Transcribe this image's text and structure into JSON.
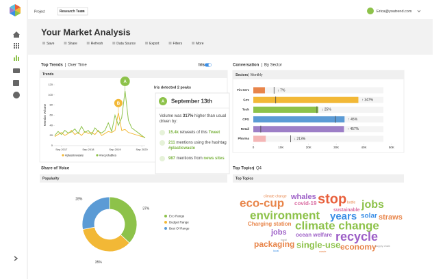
{
  "app": {
    "project_label": "Project",
    "project": "Research Team",
    "user": "Erica@youtrend.com"
  },
  "header": {
    "title": "Your Market Analysis",
    "toolbar": [
      "Save",
      "Share",
      "Refresh",
      "Data Source",
      "Export",
      "Filters",
      "More"
    ]
  },
  "sections": {
    "trends": "Top Trends",
    "trends_sub": "Over Time",
    "iris": "Iris",
    "conversation": "Conversation",
    "conversation_sub": "By Sector",
    "share": "Share of Voice",
    "topics": "Top Topics",
    "topics_sub": "Q4"
  },
  "chart_data": [
    {
      "type": "line",
      "title": "Trends",
      "ylabel": "Mention Volume",
      "ylim": [
        0,
        120
      ],
      "yticks": [
        0,
        20,
        40,
        60,
        80,
        100,
        120
      ],
      "xticks": [
        {
          "value": 2,
          "label": "Sep 2017"
        },
        {
          "value": 10,
          "label": "Sep 2018"
        },
        {
          "value": 18,
          "label": "Sep 2019"
        },
        {
          "value": 26,
          "label": "Sep 2020"
        }
      ],
      "series": [
        {
          "name": "#plasticwaste",
          "color": "#f2b836",
          "values": [
            18,
            22,
            26,
            20,
            24,
            30,
            22,
            26,
            20,
            28,
            24,
            26,
            22,
            30,
            20,
            24,
            28,
            26,
            30,
            65,
            30,
            32,
            26,
            24,
            22,
            20,
            18,
            16
          ]
        },
        {
          "name": "#recyclables",
          "color": "#8dc24a",
          "values": [
            20,
            28,
            22,
            30,
            25,
            27,
            33,
            24,
            38,
            26,
            30,
            22,
            35,
            28,
            25,
            30,
            45,
            28,
            60,
            40,
            55,
            108,
            50,
            35,
            30,
            25,
            20,
            15
          ]
        }
      ],
      "annotations": [
        "A",
        "B"
      ]
    },
    {
      "type": "hbar",
      "title": "Sectors",
      "subtitle": "Monthly",
      "categories": [
        "Fin Serv",
        "Gov",
        "Tech",
        "CPG",
        "Retail",
        "Pharma"
      ],
      "values": [
        4200,
        38000,
        23500,
        33000,
        32800,
        4500
      ],
      "benchmarks": [
        7500,
        8100,
        23000,
        29700,
        2700,
        13500
      ],
      "colors": [
        "#e8854a",
        "#f2b836",
        "#8dc24a",
        "#5b9bd5",
        "#9d7fc7",
        "#f4b6b6"
      ],
      "change_labels": [
        "↓ 7%",
        "↑ 347%",
        "↓ 25%",
        "↑ 45%",
        "↑ 457%",
        "↓ 213%"
      ],
      "xlim": [
        0,
        52000
      ],
      "xticks": [
        0,
        {
          "value": 10000,
          "label": "10K"
        },
        {
          "value": 20000,
          "label": "20K"
        },
        {
          "value": 30000,
          "label": "30K"
        },
        {
          "value": 40000,
          "label": "40K"
        },
        {
          "value": 50000,
          "label": "50K"
        }
      ]
    },
    {
      "type": "donut",
      "title": "Popularity",
      "categories": [
        "Eco Range",
        "Budget Range",
        "Best Of Range"
      ],
      "values": [
        37,
        35,
        28
      ],
      "value_labels": [
        "37%",
        "35%",
        "28%"
      ],
      "colors": [
        "#8dc24a",
        "#f2b836",
        "#5b9bd5"
      ]
    }
  ],
  "insight": {
    "heading": "Iris detected 2 peaks",
    "date": "September 13th",
    "summary": [
      "Volume was ",
      "317%",
      " higher than usual driven by:"
    ],
    "items": [
      [
        "15.4k",
        " retweets of this ",
        "Tweet"
      ],
      [
        "211",
        " mentions using the hashtag ",
        "#plasticwaste"
      ],
      [
        "987",
        " mentions from ",
        "news sites"
      ]
    ]
  },
  "word_cloud": {
    "title": "Top Topics",
    "words": [
      {
        "text": "climate change",
        "color": "#e8854a"
      },
      {
        "text": "whales",
        "color": "#9d5fc7"
      },
      {
        "text": "stop",
        "color": "#e8603c"
      },
      {
        "text": "bottle",
        "color": "#e8854a"
      },
      {
        "text": "eco-cup",
        "color": "#e8854a"
      },
      {
        "text": "covid-19",
        "color": "#d96aa0"
      },
      {
        "text": "jobs",
        "color": "#8dc24a"
      },
      {
        "text": "sustainable",
        "color": "#d96aa0"
      },
      {
        "text": "environment",
        "color": "#8dc24a"
      },
      {
        "text": "years",
        "color": "#3a8ee6"
      },
      {
        "text": "solar",
        "color": "#3a8ee6"
      },
      {
        "text": "straws",
        "color": "#e8854a"
      },
      {
        "text": "Charging station",
        "color": "#e8854a"
      },
      {
        "text": "climate change",
        "color": "#8dc24a"
      },
      {
        "text": "jobs",
        "color": "#9d5fc7"
      },
      {
        "text": "ocean welfare",
        "color": "#9d5fc7"
      },
      {
        "text": "recycle",
        "color": "#9d5fc7"
      },
      {
        "text": "packaging",
        "color": "#e8854a"
      },
      {
        "text": "single-use",
        "color": "#8dc24a"
      },
      {
        "text": "economy",
        "color": "#e8854a"
      },
      {
        "text": "supply chain",
        "color": "#999999"
      },
      {
        "text": "local",
        "color": "#3a8ee6"
      },
      {
        "text": "waste",
        "color": "#e8854a"
      },
      {
        "text": "fossil",
        "color": "#999999"
      }
    ]
  }
}
